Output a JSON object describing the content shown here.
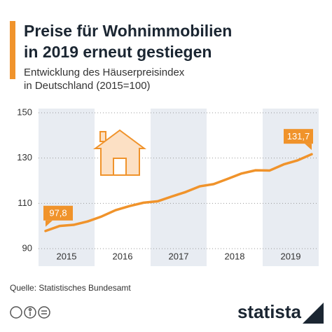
{
  "chart_data": {
    "type": "line",
    "title": [
      "Preise für Wohnimmobilien",
      "in 2019 erneut gestiegen"
    ],
    "subtitle": [
      "Entwicklung des Häuserpreisindex",
      "in Deutschland (2015=100)"
    ],
    "bands": [
      "2015",
      "2016",
      "2017",
      "2018",
      "2019"
    ],
    "values": [
      97.8,
      100.0,
      100.5,
      102.0,
      104.2,
      107.0,
      108.8,
      110.3,
      110.9,
      113.0,
      115.0,
      117.5,
      118.5,
      120.8,
      123.2,
      124.6,
      124.5,
      127.2,
      129.0,
      131.7
    ],
    "value_labels": [
      "97,8",
      null,
      null,
      null,
      null,
      null,
      null,
      null,
      null,
      null,
      null,
      null,
      null,
      null,
      null,
      null,
      null,
      null,
      null,
      "131,7"
    ],
    "color": "#f0932b",
    "ylim": [
      90,
      150
    ],
    "yticks": [
      90,
      110,
      130,
      150
    ],
    "grid": true,
    "source": "Quelle: Statistisches Bundesamt",
    "brand": "statista"
  }
}
